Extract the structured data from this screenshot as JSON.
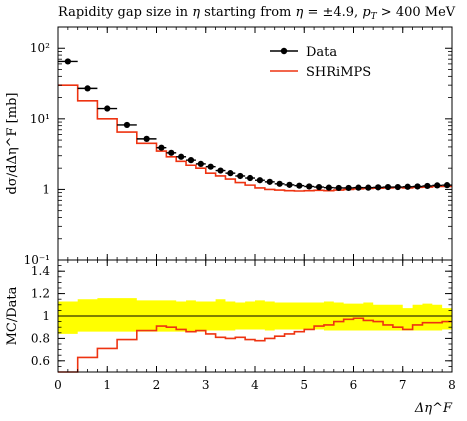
{
  "chart_data": {
    "type": "line",
    "title": "Rapidity gap size in η starting from η = ±4.9, p_T > 400 MeV",
    "xlabel": "Δη^F",
    "ylabel": "dσ/dΔη^F [mb]",
    "ratio_ylabel": "MC/Data",
    "xlim": [
      0,
      8
    ],
    "ylim": [
      0.1,
      200
    ],
    "yscale": "log",
    "ratio_ylim": [
      0.5,
      1.5
    ],
    "x_ticks": [
      "0",
      "1",
      "2",
      "3",
      "4",
      "5",
      "6",
      "7",
      "8"
    ],
    "y_ticks": [
      "10⁻¹",
      "1",
      "10¹",
      "10²"
    ],
    "ratio_ticks": [
      "0.6",
      "0.8",
      "1",
      "1.2",
      "1.4"
    ],
    "legend_position": "top-right",
    "bin_edges": [
      0,
      0.4,
      0.8,
      1.2,
      1.6,
      2.0,
      2.2,
      2.4,
      2.6,
      2.8,
      3.0,
      3.2,
      3.4,
      3.6,
      3.8,
      4.0,
      4.2,
      4.4,
      4.6,
      4.8,
      5.0,
      5.2,
      5.4,
      5.6,
      5.8,
      6.0,
      6.2,
      6.4,
      6.6,
      6.8,
      7.0,
      7.2,
      7.4,
      7.6,
      7.8,
      8.0
    ],
    "series": [
      {
        "name": "Data",
        "color": "#000000",
        "style": "points-with-errorbars",
        "values": [
          65,
          27,
          14,
          8.2,
          5.2,
          3.9,
          3.3,
          2.9,
          2.6,
          2.3,
          2.1,
          1.85,
          1.7,
          1.55,
          1.45,
          1.35,
          1.28,
          1.2,
          1.16,
          1.13,
          1.1,
          1.08,
          1.06,
          1.05,
          1.05,
          1.06,
          1.06,
          1.07,
          1.08,
          1.08,
          1.09,
          1.1,
          1.12,
          1.14,
          1.15
        ]
      },
      {
        "name": "SHRiMPS",
        "color": "#ee3311",
        "style": "histogram",
        "values": [
          30,
          18,
          10,
          6.5,
          4.5,
          3.5,
          2.9,
          2.5,
          2.2,
          2.0,
          1.7,
          1.55,
          1.4,
          1.25,
          1.15,
          1.05,
          1.0,
          0.98,
          0.96,
          0.95,
          0.96,
          0.97,
          0.96,
          0.98,
          1.0,
          1.02,
          1.03,
          1.04,
          1.05,
          1.06,
          1.05,
          1.07,
          1.08,
          1.1,
          1.1
        ]
      }
    ],
    "ratio": {
      "values": [
        0.46,
        0.63,
        0.71,
        0.79,
        0.87,
        0.91,
        0.9,
        0.88,
        0.86,
        0.87,
        0.84,
        0.81,
        0.8,
        0.81,
        0.79,
        0.78,
        0.8,
        0.82,
        0.84,
        0.86,
        0.88,
        0.91,
        0.92,
        0.95,
        0.97,
        0.98,
        0.96,
        0.95,
        0.92,
        0.9,
        0.88,
        0.92,
        0.94,
        0.94,
        0.95
      ],
      "band_low": [
        0.84,
        0.86,
        0.86,
        0.86,
        0.86,
        0.86,
        0.86,
        0.86,
        0.86,
        0.86,
        0.87,
        0.87,
        0.87,
        0.88,
        0.88,
        0.88,
        0.87,
        0.88,
        0.88,
        0.88,
        0.88,
        0.88,
        0.87,
        0.87,
        0.87,
        0.87,
        0.87,
        0.87,
        0.87,
        0.87,
        0.87,
        0.87,
        0.87,
        0.87,
        0.88
      ],
      "band_high": [
        1.13,
        1.15,
        1.16,
        1.16,
        1.14,
        1.14,
        1.14,
        1.13,
        1.14,
        1.13,
        1.13,
        1.15,
        1.13,
        1.12,
        1.13,
        1.14,
        1.13,
        1.12,
        1.12,
        1.12,
        1.12,
        1.12,
        1.13,
        1.12,
        1.11,
        1.11,
        1.12,
        1.1,
        1.1,
        1.1,
        1.07,
        1.1,
        1.11,
        1.1,
        1.07
      ],
      "band_color": "#ffff00",
      "line_color": "#ee3311"
    }
  }
}
